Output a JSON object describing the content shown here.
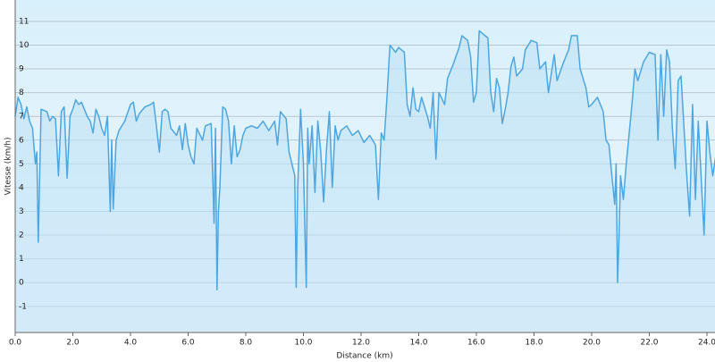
{
  "chart_data": {
    "type": "area",
    "x_label": "Distance  (km)",
    "y_label": "Vitesse (km/h)",
    "color": "#4da6e0",
    "fill_color": "#bfe3f7",
    "grid": true,
    "xlim": [
      0,
      24.3
    ],
    "ylim": [
      -2.1,
      11.9
    ],
    "xticks": [
      {
        "value": 0,
        "label": "0.0"
      },
      {
        "value": 2,
        "label": "2.0"
      },
      {
        "value": 4,
        "label": "4.0"
      },
      {
        "value": 6,
        "label": "6.0"
      },
      {
        "value": 8,
        "label": "8.0"
      },
      {
        "value": 10,
        "label": "10.0"
      },
      {
        "value": 12,
        "label": "12.0"
      },
      {
        "value": 14,
        "label": "14.0"
      },
      {
        "value": 16,
        "label": "16.0"
      },
      {
        "value": 18,
        "label": "18.0"
      },
      {
        "value": 20,
        "label": "20.0"
      },
      {
        "value": 22,
        "label": "22.0"
      },
      {
        "value": 24,
        "label": "24.0"
      }
    ],
    "yticks": [
      -1,
      0,
      1,
      2,
      3,
      4,
      5,
      6,
      7,
      8,
      9,
      10,
      11
    ],
    "x": [
      0.0,
      0.1,
      0.2,
      0.3,
      0.4,
      0.5,
      0.6,
      0.7,
      0.75,
      0.8,
      0.85,
      0.9,
      1.1,
      1.2,
      1.3,
      1.4,
      1.5,
      1.6,
      1.7,
      1.8,
      1.9,
      2.0,
      2.1,
      2.2,
      2.3,
      2.5,
      2.6,
      2.7,
      2.8,
      2.9,
      3.0,
      3.1,
      3.2,
      3.3,
      3.35,
      3.4,
      3.5,
      3.6,
      3.8,
      4.0,
      4.1,
      4.2,
      4.3,
      4.5,
      4.7,
      4.8,
      4.9,
      5.0,
      5.1,
      5.2,
      5.3,
      5.4,
      5.6,
      5.7,
      5.8,
      5.9,
      6.0,
      6.1,
      6.2,
      6.3,
      6.5,
      6.6,
      6.8,
      6.9,
      6.95,
      7.0,
      7.05,
      7.1,
      7.2,
      7.3,
      7.4,
      7.5,
      7.6,
      7.7,
      7.8,
      7.9,
      8.0,
      8.2,
      8.4,
      8.6,
      8.8,
      9.0,
      9.1,
      9.2,
      9.4,
      9.5,
      9.6,
      9.7,
      9.75,
      9.8,
      9.9,
      10.0,
      10.05,
      10.1,
      10.15,
      10.2,
      10.3,
      10.4,
      10.5,
      10.6,
      10.7,
      10.8,
      10.9,
      11.0,
      11.1,
      11.2,
      11.3,
      11.5,
      11.7,
      11.9,
      12.1,
      12.3,
      12.5,
      12.6,
      12.7,
      12.8,
      12.9,
      13.0,
      13.2,
      13.3,
      13.5,
      13.6,
      13.7,
      13.8,
      13.9,
      14.0,
      14.1,
      14.3,
      14.4,
      14.5,
      14.6,
      14.7,
      14.9,
      15.0,
      15.2,
      15.4,
      15.5,
      15.7,
      15.8,
      15.9,
      16.0,
      16.1,
      16.2,
      16.4,
      16.5,
      16.6,
      16.7,
      16.8,
      16.9,
      17.0,
      17.1,
      17.2,
      17.3,
      17.4,
      17.6,
      17.7,
      17.9,
      18.1,
      18.2,
      18.4,
      18.5,
      18.7,
      18.8,
      19.0,
      19.2,
      19.3,
      19.5,
      19.6,
      19.8,
      19.9,
      20.0,
      20.2,
      20.4,
      20.5,
      20.6,
      20.7,
      20.8,
      20.85,
      20.9,
      20.95,
      21.0,
      21.1,
      21.2,
      21.4,
      21.5,
      21.6,
      21.8,
      22.0,
      22.2,
      22.3,
      22.4,
      22.5,
      22.6,
      22.7,
      22.8,
      22.9,
      23.0,
      23.1,
      23.3,
      23.4,
      23.5,
      23.6,
      23.7,
      23.9,
      24.0,
      24.1,
      24.2,
      24.3
    ],
    "values": [
      7.0,
      7.8,
      7.5,
      6.9,
      7.4,
      6.8,
      6.5,
      5.0,
      5.5,
      1.7,
      4.5,
      7.3,
      7.2,
      6.8,
      7.0,
      6.9,
      4.5,
      7.2,
      7.4,
      4.4,
      7.0,
      7.3,
      7.7,
      7.5,
      7.6,
      7.0,
      6.8,
      6.3,
      7.3,
      7.0,
      6.5,
      6.2,
      7.0,
      3.0,
      6.0,
      3.1,
      6.0,
      6.4,
      6.8,
      7.5,
      7.6,
      6.8,
      7.1,
      7.4,
      7.5,
      7.6,
      6.6,
      5.5,
      7.2,
      7.3,
      7.2,
      6.5,
      6.2,
      6.6,
      5.6,
      6.7,
      5.8,
      5.3,
      5.0,
      6.5,
      6.0,
      6.6,
      6.7,
      2.5,
      6.5,
      -0.3,
      3.0,
      4.0,
      7.4,
      7.3,
      6.8,
      5.0,
      6.6,
      5.3,
      5.6,
      6.2,
      6.5,
      6.6,
      6.5,
      6.8,
      6.4,
      6.8,
      5.8,
      7.2,
      6.9,
      5.5,
      5.0,
      4.5,
      -0.2,
      4.0,
      7.3,
      5.0,
      2.3,
      -0.2,
      6.5,
      5.0,
      6.6,
      3.8,
      6.8,
      5.5,
      3.4,
      5.6,
      7.2,
      4.0,
      6.6,
      6.0,
      6.4,
      6.6,
      6.2,
      6.4,
      5.9,
      6.2,
      5.8,
      3.5,
      6.3,
      6.0,
      7.8,
      10.0,
      9.7,
      9.9,
      9.7,
      7.5,
      7.0,
      8.2,
      7.3,
      7.2,
      7.8,
      7.0,
      6.5,
      8.0,
      5.2,
      8.0,
      7.5,
      8.6,
      9.2,
      9.9,
      10.4,
      10.2,
      9.5,
      7.6,
      8.0,
      10.6,
      10.5,
      10.3,
      8.0,
      7.2,
      8.6,
      8.2,
      6.7,
      7.3,
      8.0,
      9.1,
      9.5,
      8.7,
      9.0,
      9.8,
      10.2,
      10.1,
      9.0,
      9.3,
      8.0,
      9.6,
      8.5,
      9.2,
      9.8,
      10.4,
      10.4,
      9.0,
      8.2,
      7.4,
      7.5,
      7.8,
      7.2,
      6.0,
      5.8,
      4.5,
      3.3,
      5.0,
      0.0,
      1.9,
      4.5,
      3.5,
      5.0,
      7.5,
      9.0,
      8.5,
      9.3,
      9.7,
      9.6,
      6.0,
      9.6,
      7.0,
      9.8,
      9.3,
      6.5,
      4.8,
      8.5,
      8.7,
      4.5,
      2.8,
      7.5,
      3.5,
      6.8,
      2.0,
      6.8,
      5.5,
      4.5,
      5.3
    ]
  }
}
